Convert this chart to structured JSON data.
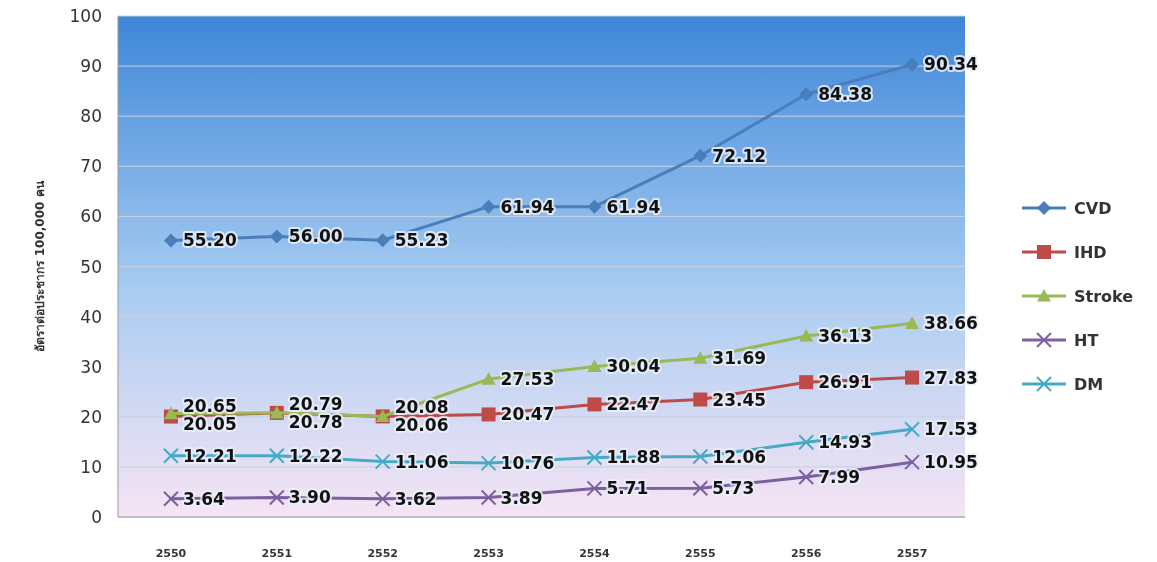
{
  "chart_data": {
    "type": "line",
    "ylabel": "อัตราต่อประชากร 100,000 คน",
    "categories": [
      "2550",
      "2551",
      "2552",
      "2553",
      "2554",
      "2555",
      "2556",
      "2557"
    ],
    "series": [
      {
        "name": "CVD",
        "color": "#4a7ebb",
        "marker": "diamond",
        "values": [
          55.2,
          56.0,
          55.23,
          61.94,
          61.94,
          72.12,
          84.38,
          90.34
        ],
        "value_labels": [
          "55.20",
          "56.00",
          "55.23",
          "61.94",
          "61.94",
          "72.12",
          "84.38",
          "90.34"
        ]
      },
      {
        "name": "IHD",
        "color": "#be4b48",
        "marker": "square",
        "values": [
          20.05,
          20.78,
          20.08,
          20.47,
          22.47,
          23.45,
          26.91,
          27.83
        ],
        "value_labels": [
          "20.05",
          "20.78",
          "20.08",
          "20.47",
          "22.47",
          "23.45",
          "26.91",
          "27.83"
        ]
      },
      {
        "name": "Stroke",
        "color": "#98b954",
        "marker": "triangle",
        "values": [
          20.65,
          20.79,
          20.06,
          27.53,
          30.04,
          31.69,
          36.13,
          38.66
        ],
        "value_labels": [
          "20.65",
          "20.79",
          "20.06",
          "27.53",
          "30.04",
          "31.69",
          "36.13",
          "38.66"
        ]
      },
      {
        "name": "HT",
        "color": "#7d60a0",
        "marker": "cross",
        "values": [
          3.64,
          3.9,
          3.62,
          3.89,
          5.71,
          5.73,
          7.99,
          10.95
        ],
        "value_labels": [
          "3.64",
          "3.90",
          "3.62",
          "3.89",
          "5.71",
          "5.73",
          "7.99",
          "10.95"
        ]
      },
      {
        "name": "DM",
        "color": "#46aac5",
        "marker": "cross",
        "values": [
          12.21,
          12.22,
          11.06,
          10.76,
          11.88,
          12.06,
          14.93,
          17.53
        ],
        "value_labels": [
          "12.21",
          "12.22",
          "11.06",
          "10.76",
          "11.88",
          "12.06",
          "14.93",
          "17.53"
        ]
      }
    ],
    "ylim": [
      0,
      100
    ],
    "yticks": [
      0,
      10,
      20,
      30,
      40,
      50,
      60,
      70,
      80,
      90,
      100
    ],
    "grid": "y",
    "legend": "right"
  }
}
